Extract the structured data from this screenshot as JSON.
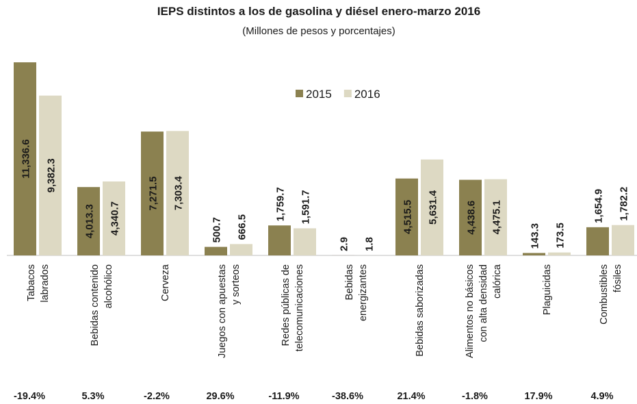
{
  "chart_data": {
    "type": "bar",
    "title": "IEPS distintos a los de gasolina y diésel enero-marzo 2016",
    "subtitle": "(Millones de pesos y porcentajes)",
    "categories": [
      "Tabacos\nlabrados",
      "Bebidas contenido\nalcohólico",
      "Cerveza",
      "Juegos con apuestas\ny sorteos",
      "Redes públicas de\ntelecomunicaciones",
      "Bebidas\nenergizantes",
      "Bebidas saborizadas",
      "Alimentos no básicos\ncon alta densidad\ncalórica",
      "Plaguicidas",
      "Combustibles\nfósiles"
    ],
    "series": [
      {
        "name": "2015",
        "color": "#8b8150",
        "values": [
          11336.6,
          4013.3,
          7271.5,
          500.7,
          1759.7,
          2.9,
          4515.5,
          4438.6,
          143.3,
          1654.9
        ],
        "value_labels": [
          "11,336.6",
          "4,013.3",
          "7,271.5",
          "500.7",
          "1,759.7",
          "2.9",
          "4,515.5",
          "4,438.6",
          "143.3",
          "1,654.9"
        ]
      },
      {
        "name": "2016",
        "color": "#ddd9c3",
        "values": [
          9382.3,
          4340.7,
          7303.4,
          666.5,
          1591.7,
          1.8,
          5631.4,
          4475.1,
          173.5,
          1782.2
        ],
        "value_labels": [
          "9,382.3",
          "4,340.7",
          "7,303.4",
          "666.5",
          "1,591.7",
          "1.8",
          "5,631.4",
          "4,475.1",
          "173.5",
          "1,782.2"
        ]
      }
    ],
    "growth": [
      -19.4,
      5.3,
      -2.2,
      29.6,
      -11.9,
      -38.6,
      21.4,
      -1.8,
      17.9,
      4.9
    ],
    "growth_labels": [
      "-19.4%",
      "5.3%",
      "-2.2%",
      "29.6%",
      "-11.9%",
      "-38.6%",
      "21.4%",
      "-1.8%",
      "17.9%",
      "4.9%"
    ],
    "ylim": [
      0,
      12000
    ],
    "legend": "top"
  }
}
